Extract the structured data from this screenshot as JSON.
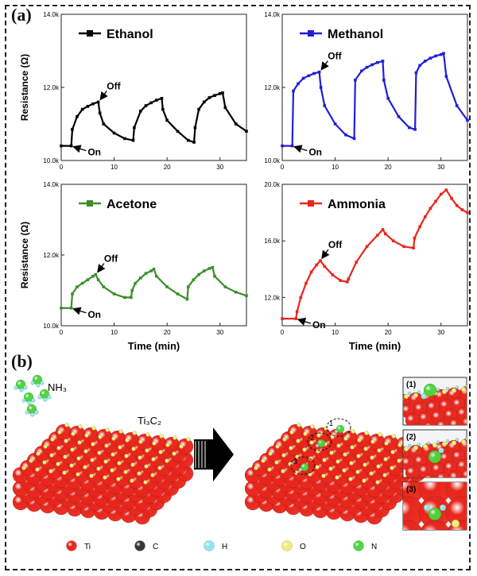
{
  "panel_a_label": "(a)",
  "panel_b_label": "(b)",
  "on_label": "On",
  "off_label": "Off",
  "ylabel": "Resistance (Ω)",
  "xlabel": "Time (min)",
  "chart_data": [
    {
      "type": "line",
      "title": "Ethanol",
      "color": "#000000",
      "xlim": [
        0,
        35
      ],
      "ylim": [
        10000,
        14000
      ],
      "xticks": [
        "0",
        "10",
        "20",
        "30"
      ],
      "yticks": [
        "10.0k",
        "12.0k",
        "14.0k"
      ],
      "x": [
        0,
        1.9,
        2.1,
        3,
        4,
        5,
        6,
        7,
        7.3,
        8,
        10,
        12,
        13.6,
        13.8,
        15,
        16,
        17,
        18,
        19,
        19.2,
        20,
        22,
        24,
        25.1,
        25.3,
        26,
        27,
        28,
        29,
        30,
        30.5,
        31,
        33,
        35
      ],
      "y": [
        10400,
        10400,
        10850,
        11200,
        11400,
        11480,
        11550,
        11600,
        11300,
        11000,
        10750,
        10600,
        10550,
        10900,
        11350,
        11500,
        11580,
        11650,
        11700,
        11400,
        11100,
        10800,
        10550,
        10500,
        10900,
        11400,
        11600,
        11720,
        11780,
        11830,
        11850,
        11450,
        11000,
        10800
      ]
    },
    {
      "type": "line",
      "title": "Methanol",
      "color": "#1f1fd8",
      "xlim": [
        0,
        35
      ],
      "ylim": [
        10000,
        14000
      ],
      "xticks": [
        "0",
        "10",
        "20",
        "30"
      ],
      "yticks": [
        "10.0k",
        "12.0k",
        "14.0k"
      ],
      "x": [
        0,
        1.9,
        2.1,
        3,
        4,
        5,
        6,
        7,
        7.3,
        8,
        10,
        12,
        13.6,
        13.8,
        15,
        16,
        17,
        18,
        19,
        19.2,
        20,
        22,
        24,
        25.1,
        25.3,
        26,
        27,
        28,
        29,
        30,
        30.5,
        31,
        33,
        35
      ],
      "y": [
        10400,
        10400,
        11900,
        12100,
        12250,
        12320,
        12380,
        12420,
        12000,
        11500,
        11000,
        10700,
        10600,
        12200,
        12450,
        12550,
        12620,
        12680,
        12720,
        12200,
        11700,
        11200,
        10900,
        10850,
        12400,
        12600,
        12720,
        12800,
        12860,
        12900,
        12930,
        12300,
        11500,
        11100
      ]
    },
    {
      "type": "line",
      "title": "Acetone",
      "color": "#3a8f2a",
      "xlim": [
        0,
        35
      ],
      "ylim": [
        10000,
        14000
      ],
      "xticks": [
        "0",
        "10",
        "20",
        "30"
      ],
      "yticks": [
        "10.0k",
        "12.0k",
        "14.0k"
      ],
      "x": [
        0,
        1.9,
        2.1,
        3,
        4,
        5,
        6,
        6.5,
        7,
        8,
        10,
        12,
        13.2,
        13.4,
        14,
        15,
        16,
        17,
        17.5,
        18,
        20,
        22,
        23.8,
        24,
        25,
        26,
        27,
        28,
        28.6,
        29,
        31,
        33,
        35
      ],
      "y": [
        10500,
        10500,
        10900,
        11100,
        11200,
        11300,
        11400,
        11450,
        11300,
        11100,
        10900,
        10800,
        10800,
        11000,
        11200,
        11350,
        11480,
        11550,
        11600,
        11400,
        11100,
        10900,
        10750,
        11100,
        11300,
        11450,
        11550,
        11620,
        11650,
        11400,
        11100,
        10950,
        10850
      ]
    },
    {
      "type": "line",
      "title": "Ammonia",
      "color": "#e8261c",
      "xlim": [
        0,
        35
      ],
      "ylim": [
        10000,
        20000
      ],
      "xticks": [
        "0",
        "10",
        "20",
        "30"
      ],
      "yticks": [
        "12.0k",
        "16.0k",
        "20.0k"
      ],
      "x": [
        0,
        2.6,
        2.8,
        3.5,
        4.5,
        5.5,
        6.5,
        7.2,
        8,
        9.5,
        11,
        12.3,
        12.5,
        14,
        16,
        18,
        19,
        19.5,
        21,
        23,
        24.8,
        25,
        26,
        27,
        28,
        29,
        30,
        31,
        32,
        33,
        34,
        35
      ],
      "y": [
        10500,
        10500,
        11000,
        12000,
        13000,
        13800,
        14300,
        14600,
        14200,
        13600,
        13200,
        13100,
        13300,
        14500,
        15600,
        16400,
        16800,
        16500,
        16000,
        15600,
        15500,
        16200,
        17000,
        17700,
        18300,
        18800,
        19300,
        19600,
        19000,
        18500,
        18200,
        18000
      ]
    }
  ],
  "panel_b": {
    "gas_label": "NH₃",
    "surface_label": "Ti₃C₂",
    "site_markers": [
      "1",
      "2",
      "3"
    ],
    "inset_labels": [
      "(1)",
      "(2)",
      "(3)"
    ],
    "legend": [
      {
        "symbol": "Ti",
        "color": "#e8261c"
      },
      {
        "symbol": "C",
        "color": "#333333"
      },
      {
        "symbol": "H",
        "color": "#8ee6f0"
      },
      {
        "symbol": "O",
        "color": "#f0f070"
      },
      {
        "symbol": "N",
        "color": "#4cd43a"
      }
    ]
  }
}
